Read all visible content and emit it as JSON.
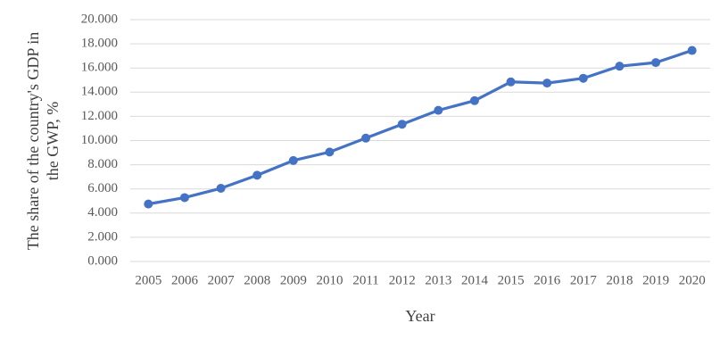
{
  "chart_data": {
    "type": "line",
    "x_label": "Year",
    "y_label": [
      "The share of the country's GDP in",
      "the GWP, %"
    ],
    "categories": [
      "2005",
      "2006",
      "2007",
      "2008",
      "2009",
      "2010",
      "2011",
      "2012",
      "2013",
      "2014",
      "2015",
      "2016",
      "2017",
      "2018",
      "2019",
      "2020"
    ],
    "series": [
      {
        "color": "#4472c4",
        "values": [
          4.75,
          5.28,
          6.05,
          7.13,
          8.35,
          9.05,
          10.2,
          11.35,
          12.5,
          13.3,
          14.85,
          14.75,
          15.15,
          16.15,
          16.45,
          17.45
        ]
      }
    ],
    "ylim": [
      0,
      20
    ],
    "yticks": [
      {
        "value": 0,
        "label": "0.000"
      },
      {
        "value": 2,
        "label": "2.000"
      },
      {
        "value": 4,
        "label": "4.000"
      },
      {
        "value": 6,
        "label": "6.000"
      },
      {
        "value": 8,
        "label": "8.000"
      },
      {
        "value": 10,
        "label": "10.000"
      },
      {
        "value": 12,
        "label": "12.000"
      },
      {
        "value": 14,
        "label": "14.000"
      },
      {
        "value": 16,
        "label": "16.000"
      },
      {
        "value": 18,
        "label": "18.000"
      },
      {
        "value": 20,
        "label": "20.000"
      }
    ],
    "grid": true
  }
}
